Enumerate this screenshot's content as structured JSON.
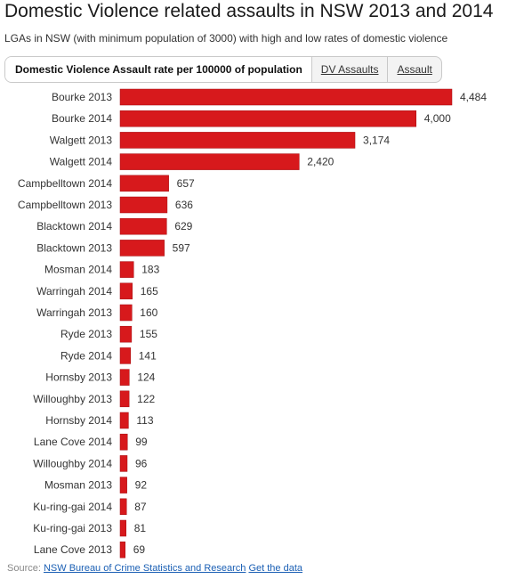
{
  "title": "Domestic Violence related assaults in NSW 2013 and 2014",
  "subtitle": "LGAs in NSW (with minimum population of 3000) with high and low rates of domestic violence",
  "tabs": [
    {
      "label": "Domestic Violence Assault rate per 100000 of population",
      "active": true
    },
    {
      "label": "DV Assaults",
      "active": false
    },
    {
      "label": "Assault",
      "active": false
    }
  ],
  "source": {
    "prefix": "Source:",
    "link_label": "NSW Bureau of Crime Statistics and Research",
    "data_link_label": "Get the data"
  },
  "colors": {
    "bar": "#d7191c",
    "bar_edge": "#a50f12"
  },
  "chart_data": {
    "type": "bar",
    "orientation": "horizontal",
    "categories": [
      "Bourke 2013",
      "Bourke 2014",
      "Walgett 2013",
      "Walgett 2014",
      "Campbelltown 2014",
      "Campbelltown 2013",
      "Blacktown 2014",
      "Blacktown 2013",
      "Mosman 2014",
      "Warringah 2014",
      "Warringah 2013",
      "Ryde 2013",
      "Ryde 2014",
      "Hornsby 2013",
      "Willoughby 2013",
      "Hornsby 2014",
      "Lane Cove 2014",
      "Willoughby 2014",
      "Mosman 2013",
      "Ku-ring-gai 2014",
      "Ku-ring-gai 2013",
      "Lane Cove 2013"
    ],
    "values": [
      4484,
      4000,
      3174,
      2420,
      657,
      636,
      629,
      597,
      183,
      165,
      160,
      155,
      141,
      124,
      122,
      113,
      99,
      96,
      92,
      87,
      81,
      69
    ],
    "labels": [
      "4,484",
      "4,000",
      "3,174",
      "2,420",
      "657",
      "636",
      "629",
      "597",
      "183",
      "165",
      "160",
      "155",
      "141",
      "124",
      "122",
      "113",
      "99",
      "96",
      "92",
      "87",
      "81",
      "69"
    ],
    "xlim": [
      0,
      4484
    ],
    "grid": false,
    "legend": "none"
  }
}
